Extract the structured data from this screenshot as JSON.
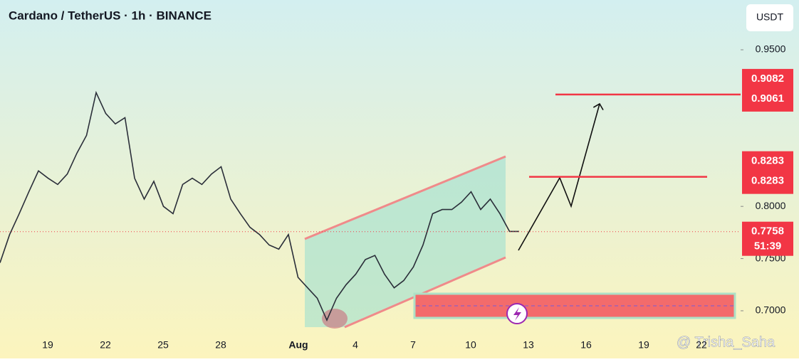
{
  "chart_data": {
    "type": "line",
    "title": "Cardano / TetherUS · 1h · BINANCE",
    "currency": "USDT",
    "watermark": "@ Trisha_Saha",
    "x_labels": [
      "19",
      "22",
      "25",
      "28",
      "Aug",
      "4",
      "7",
      "10",
      "13",
      "16",
      "19",
      "22"
    ],
    "series": [
      {
        "color": "#2a2e39",
        "values": [
          0.746,
          0.773,
          0.793,
          0.814,
          0.834,
          0.827,
          0.821,
          0.831,
          0.851,
          0.868,
          0.909,
          0.889,
          0.879,
          0.885,
          0.827,
          0.807,
          0.824,
          0.8,
          0.793,
          0.821,
          0.827,
          0.821,
          0.831,
          0.838,
          0.807,
          0.793,
          0.78,
          0.773,
          0.763,
          0.759,
          0.773,
          0.732,
          0.722,
          0.712,
          0.691,
          0.712,
          0.725,
          0.735,
          0.749,
          0.753,
          0.735,
          0.722,
          0.729,
          0.742,
          0.763,
          0.793,
          0.797,
          0.797,
          0.804,
          0.814,
          0.797,
          0.807,
          0.793,
          0.776,
          0.776
        ]
      }
    ],
    "ylim": [
      0.6775,
      0.9977
    ],
    "yticks": [
      {
        "value": 0.95,
        "label": "0.9500"
      },
      {
        "value": 0.8,
        "label": "0.8000"
      },
      {
        "value": 0.75,
        "label": "0.7500"
      },
      {
        "value": 0.7,
        "label": "0.7000"
      }
    ],
    "levels": [
      {
        "high": 0.9082,
        "low": 0.9061,
        "color": "#f23645"
      },
      {
        "high": 0.8283,
        "low": 0.8283,
        "color": "#f23645"
      }
    ],
    "last_price": 0.7758,
    "countdown": "51:39"
  }
}
